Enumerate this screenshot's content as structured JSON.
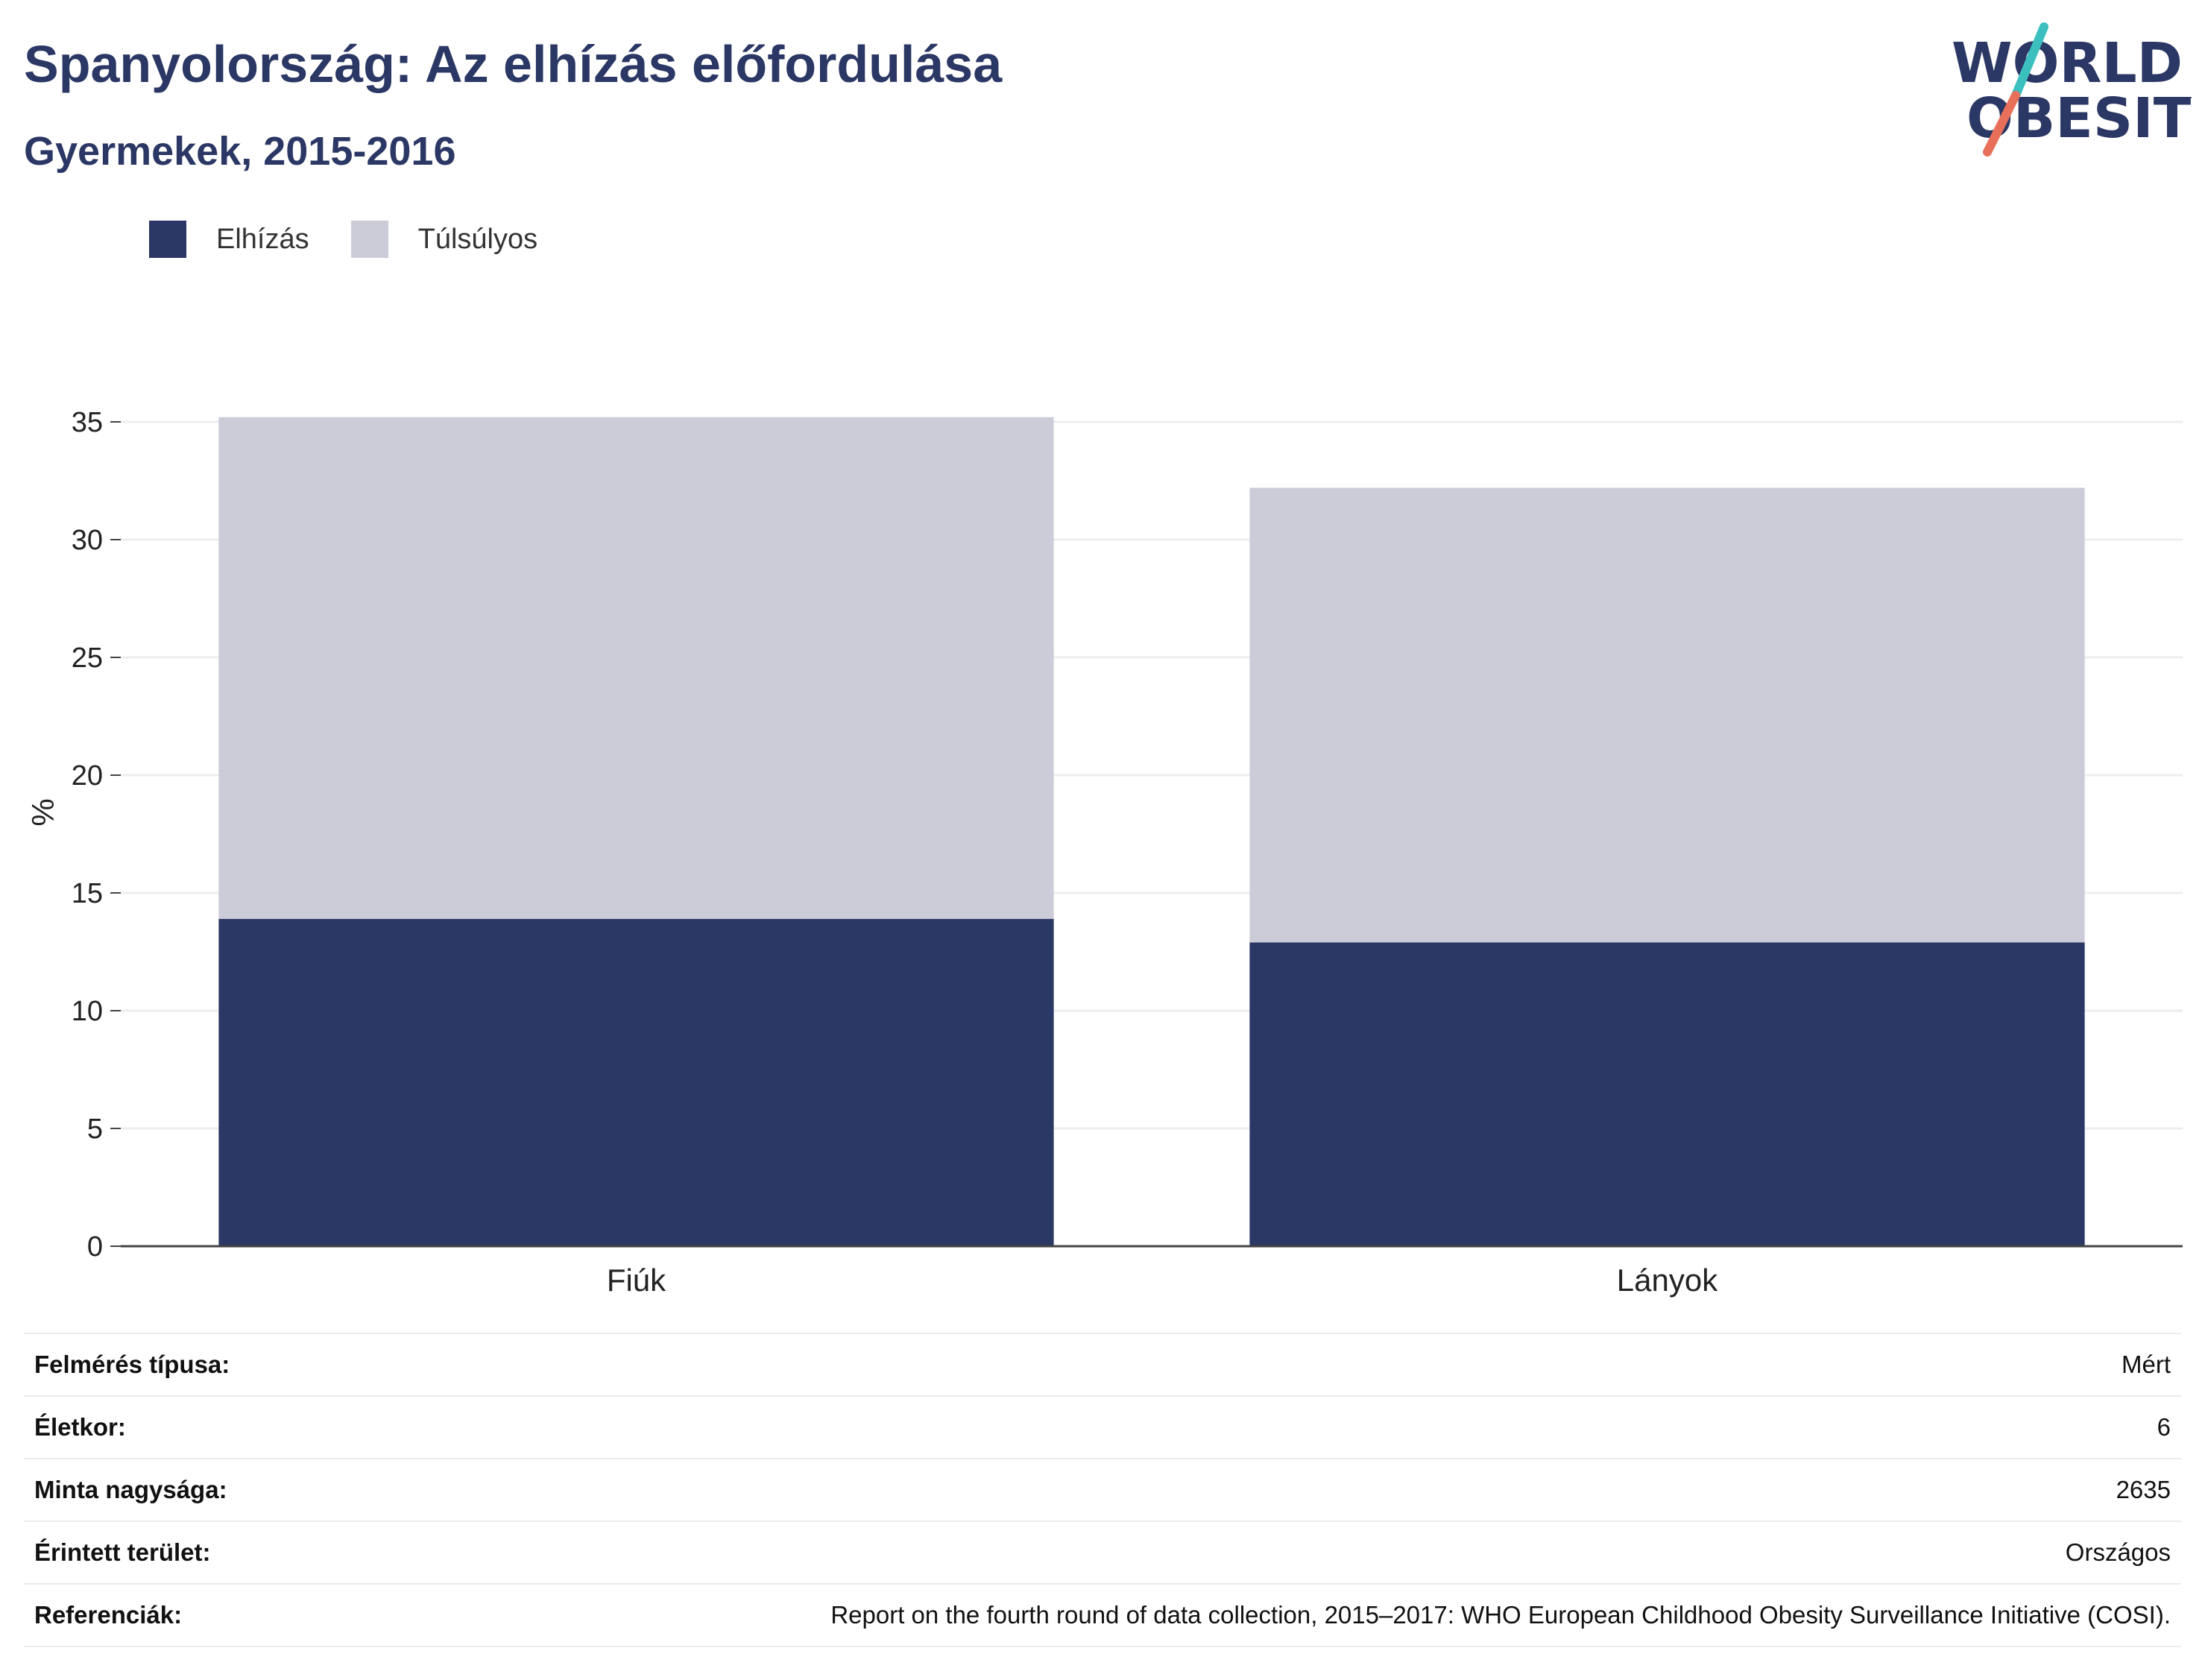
{
  "header": {
    "title": "Spanyolország: Az elhízás előfordulása",
    "subtitle": "Gyermekek, 2015-2016"
  },
  "logo": {
    "line1": "WORLD",
    "line2": "OBESITY",
    "slash_color_top": "#3bbfbf",
    "slash_color_bottom": "#e8705a"
  },
  "legend": [
    {
      "label": "Elhízás",
      "color": "#2b3764"
    },
    {
      "label": "Túlsúlyos",
      "color": "#cbccd8"
    }
  ],
  "chart_data": {
    "type": "bar",
    "stacked": true,
    "categories": [
      "Fiúk",
      "Lányok"
    ],
    "series": [
      {
        "name": "Elhízás",
        "values": [
          13.9,
          12.9
        ],
        "color": "#2b3764"
      },
      {
        "name": "Túlsúlyos",
        "values": [
          21.3,
          19.3
        ],
        "color": "#cbccd8"
      }
    ],
    "ylabel": "%",
    "ylim": [
      0,
      35
    ],
    "yticks": [
      0,
      5,
      10,
      15,
      20,
      25,
      30,
      35
    ],
    "grid": true,
    "legend_position": "top-left"
  },
  "info": [
    {
      "key": "Felmérés típusa:",
      "value": "Mért"
    },
    {
      "key": "Életkor:",
      "value": "6"
    },
    {
      "key": "Minta nagysága:",
      "value": "2635"
    },
    {
      "key": "Érintett terület:",
      "value": "Országos"
    },
    {
      "key": "Referenciák:",
      "value": "Report on the fourth round of data collection, 2015–2017: WHO European Childhood Obesity Surveillance Initiative (COSI)."
    }
  ]
}
